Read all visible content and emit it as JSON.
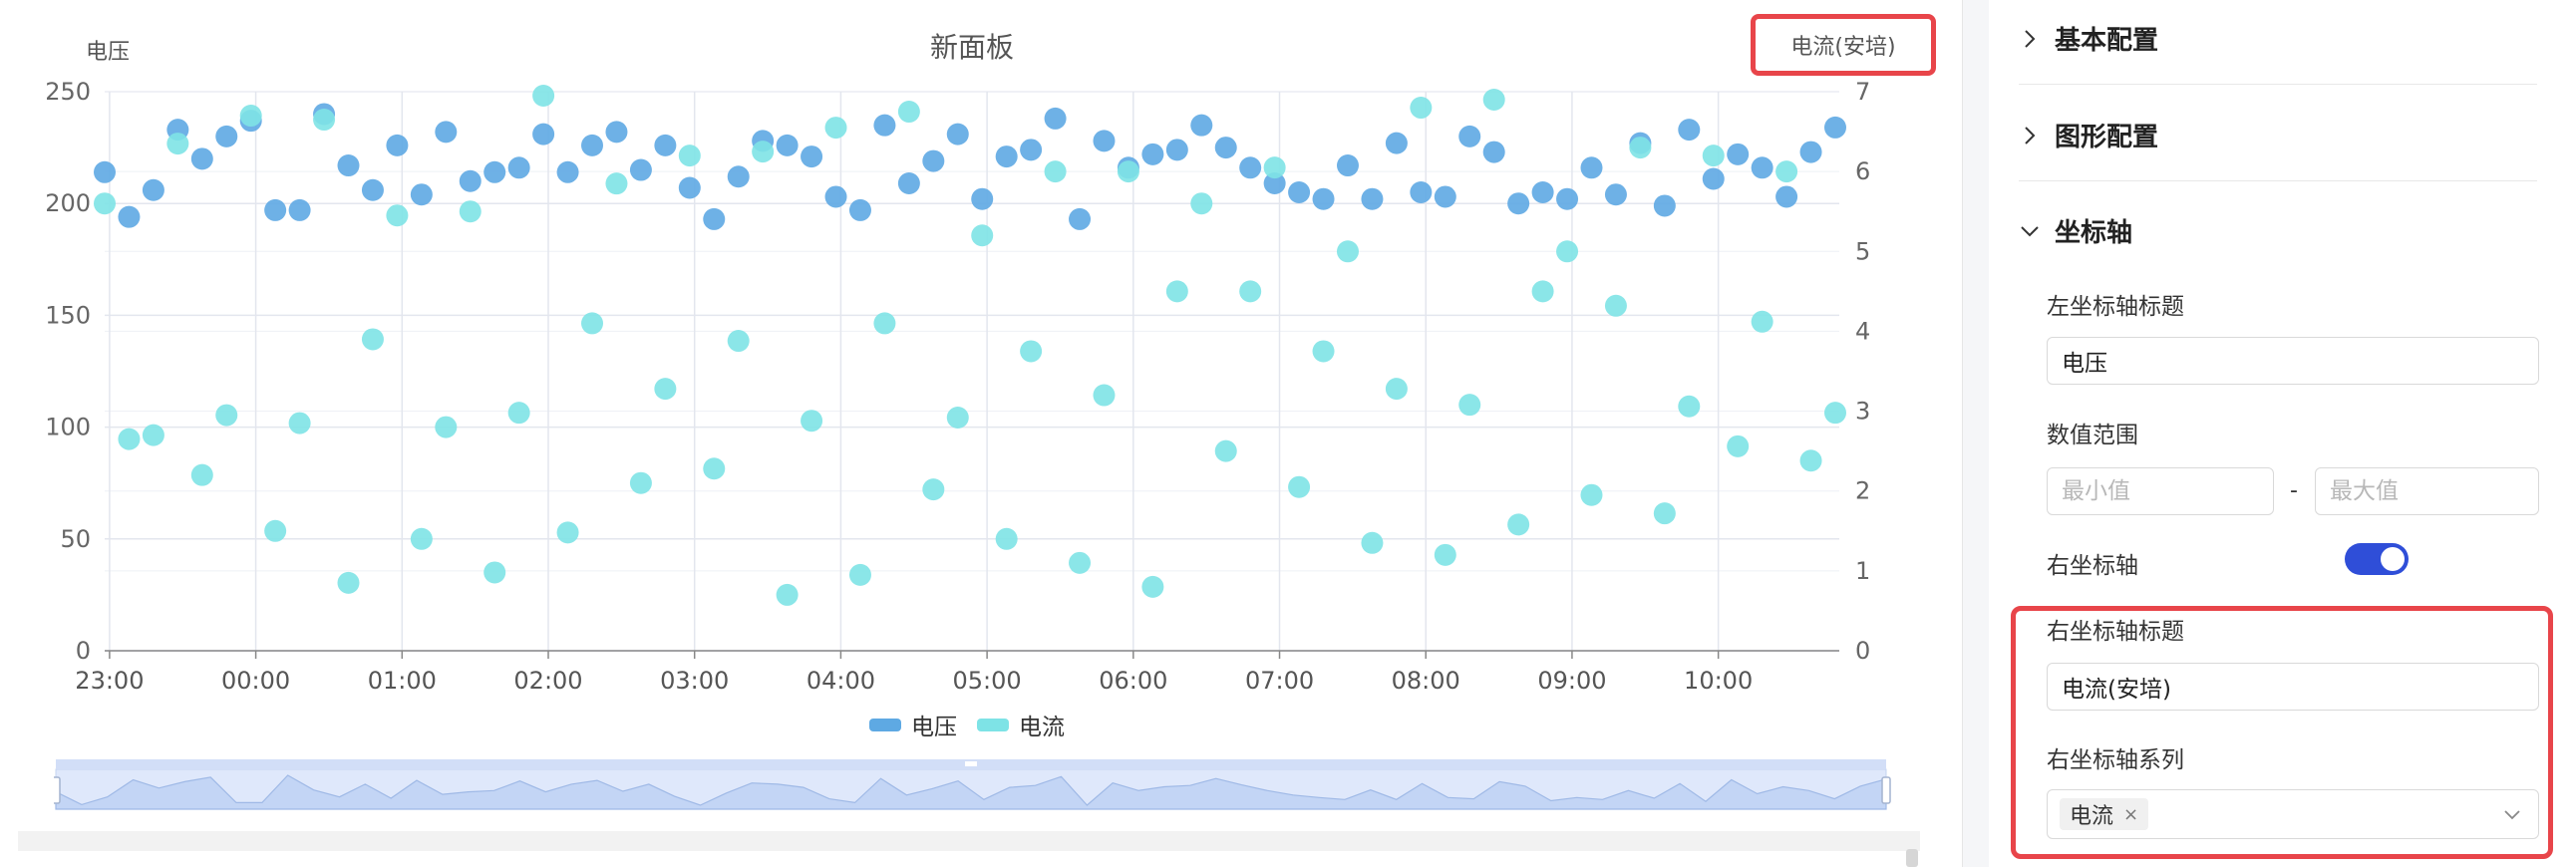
{
  "panel": {
    "title": "新面板"
  },
  "chart_data": {
    "type": "scatter",
    "title": "新面板",
    "x_ticks": [
      "23:00",
      "00:00",
      "01:00",
      "02:00",
      "03:00",
      "04:00",
      "05:00",
      "06:00",
      "07:00",
      "08:00",
      "09:00",
      "10:00"
    ],
    "x_start": "22:58",
    "x_step_min": 10,
    "left_axis": {
      "title": "电压",
      "min": 0,
      "max": 250,
      "ticks": [
        "0",
        "50",
        "100",
        "150",
        "200",
        "250"
      ]
    },
    "right_axis": {
      "title": "电流(安培)",
      "min": 0,
      "max": 7,
      "ticks": [
        "0",
        "1",
        "2",
        "3",
        "4",
        "5",
        "6",
        "7"
      ]
    },
    "grid": true,
    "legend_position": "bottom",
    "series": [
      {
        "name": "电压",
        "axis": "left",
        "color": "#5ea9e3",
        "values": [
          214,
          194,
          206,
          233,
          220,
          230,
          237,
          197,
          197,
          240,
          217,
          206,
          226,
          204,
          232,
          210,
          214,
          216,
          231,
          214,
          226,
          232,
          215,
          226,
          207,
          193,
          212,
          228,
          226,
          221,
          203,
          197,
          235,
          209,
          219,
          231,
          202,
          221,
          224,
          238,
          193,
          228,
          216,
          222,
          224,
          235,
          225,
          216,
          209,
          205,
          202,
          217,
          202,
          227,
          205,
          203,
          230,
          223,
          200,
          205,
          202,
          216,
          204,
          227,
          199,
          233,
          211,
          222,
          216,
          203,
          223,
          234
        ]
      },
      {
        "name": "电流",
        "axis": "right",
        "color": "#7ee3e6",
        "values": [
          5.6,
          2.65,
          2.7,
          6.35,
          2.2,
          2.95,
          6.7,
          1.5,
          2.85,
          6.65,
          0.85,
          3.9,
          5.45,
          1.4,
          2.8,
          5.5,
          0.98,
          2.98,
          6.95,
          1.48,
          4.1,
          5.85,
          2.1,
          3.28,
          6.2,
          2.28,
          3.88,
          6.25,
          0.7,
          2.88,
          6.55,
          0.95,
          4.1,
          6.75,
          2.02,
          2.92,
          5.2,
          1.4,
          3.75,
          6.0,
          1.1,
          3.2,
          6.0,
          0.8,
          4.5,
          5.6,
          2.5,
          4.5,
          6.05,
          2.05,
          3.75,
          5.0,
          1.35,
          3.28,
          6.8,
          1.2,
          3.08,
          6.9,
          1.58,
          4.5,
          5.0,
          1.95,
          4.32,
          6.3,
          1.72,
          3.06,
          6.2,
          2.56,
          4.12,
          6.0,
          2.38,
          2.98
        ]
      }
    ]
  },
  "zoom": {
    "mini_values": [
      214,
      194,
      206,
      233,
      220,
      230,
      237,
      197,
      197,
      240,
      217,
      206,
      226,
      204,
      232,
      210,
      214,
      216,
      231,
      214,
      226,
      232,
      215,
      226,
      207,
      193,
      212,
      228,
      226,
      221,
      203,
      197,
      235,
      209,
      219,
      231,
      202,
      221,
      224,
      238,
      193,
      228,
      216,
      222,
      224,
      235,
      225,
      216,
      209,
      205,
      202,
      217,
      202,
      227,
      205,
      203,
      230,
      223,
      200,
      205,
      202,
      216,
      204,
      227,
      199,
      233,
      211,
      222,
      216,
      203,
      223,
      234
    ]
  },
  "config": {
    "sections": {
      "basic": "基本配置",
      "graphic": "图形配置",
      "axis": "坐标轴"
    },
    "left_axis_title_label": "左坐标轴标题",
    "left_axis_title_value": "电压",
    "range_label": "数值范围",
    "range_min_placeholder": "最小值",
    "range_max_placeholder": "最大值",
    "range_separator": "-",
    "right_axis_label": "右坐标轴",
    "right_axis_enabled": true,
    "right_axis_title_label": "右坐标轴标题",
    "right_axis_title_value": "电流(安培)",
    "right_axis_series_label": "右坐标轴系列",
    "right_axis_series_tag": "电流",
    "tag_close": "×"
  }
}
